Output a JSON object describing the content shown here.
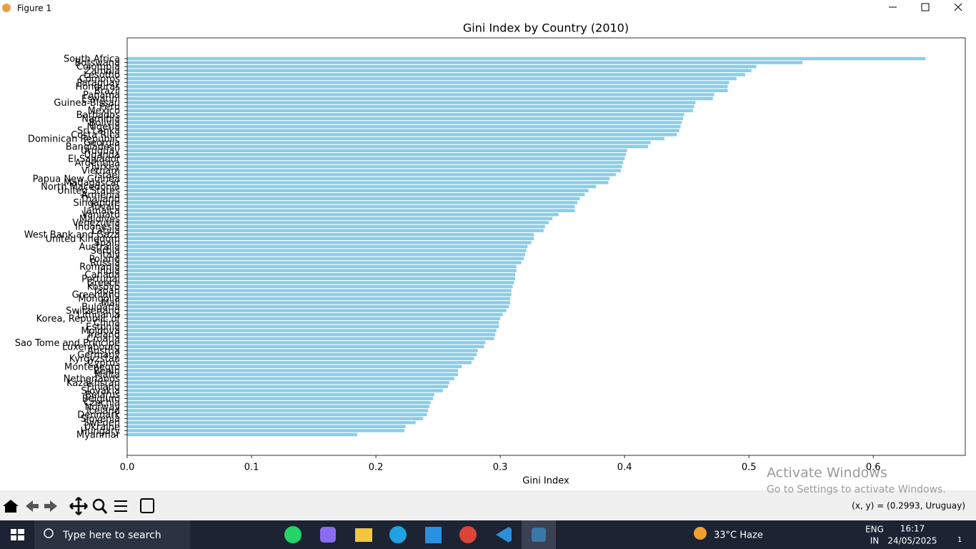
{
  "window": {
    "title": "Figure 1",
    "status": "(x, y) = (0.2993, Uruguay)"
  },
  "watermark": {
    "title": "Activate Windows",
    "subtitle": "Go to Settings to activate Windows."
  },
  "taskbar": {
    "search": "Type here to search",
    "weather": "33°C  Haze",
    "lang": "ENG",
    "region": "IN",
    "time": "16:17",
    "date": "24/05/2025",
    "notifications": "1"
  },
  "chart_data": {
    "type": "barh",
    "title": "Gini Index by Country (2010)",
    "x_label": "Gini Index",
    "color": "#87ceeb",
    "categories": [
      "South Africa",
      "Botswana",
      "Colombia",
      "Zambia",
      "Lesotho",
      "Comoros",
      "Paraguay",
      "Honduras",
      "Brazil",
      "Panama",
      "Eswatini",
      "Guinea-Bissau",
      "Peru",
      "Mexico",
      "Barbados",
      "Namibia",
      "Bolivia",
      "Nigeria",
      "Sri Lanka",
      "Costa Rica",
      "Dominican Republic",
      "Georgia",
      "Bangladesh",
      "Uruguay",
      "Uganda",
      "El Salvador",
      "Argentina",
      "Turkey",
      "Vietnam",
      "Israel",
      "Papua New Guinea",
      "Madagascar",
      "North Macedonia",
      "United States",
      "Armenia",
      "Thailand",
      "Singapore",
      "Tuvalu",
      "Jamaica",
      "Vanuatu",
      "Maldives",
      "Venezuela",
      "Indonesia",
      "Latvia",
      "West Bank and Gaza",
      "United Kingdom",
      "Spain",
      "Australia",
      "Serbia",
      "Italy",
      "Poland",
      "Russia",
      "Romania",
      "India",
      "Canada",
      "Portugal",
      "Greece",
      "Kosovo",
      "Japan",
      "Greenland",
      "Mongolia",
      "Mali",
      "Bulgaria",
      "Switzerland",
      "Lithuania",
      "Korea, Republic of",
      "China",
      "Estonia",
      "Moldova",
      "Ireland",
      "Croatia",
      "Sao Tome and Principe",
      "Luxembourg",
      "Austria",
      "Germany",
      "Kyrgyzstan",
      "Cyprus",
      "Montenegro",
      "Benin",
      "Malta",
      "Netherlands",
      "Kazakhstan",
      "Finland",
      "Slovakia",
      "Belarus",
      "Belgium",
      "Czechia",
      "Norway",
      "Iceland",
      "Denmark",
      "Slovenia",
      "Sweden",
      "Ukraine",
      "Hungary",
      "Myanmar"
    ],
    "values": [
      0.642,
      0.543,
      0.506,
      0.502,
      0.497,
      0.49,
      0.484,
      0.483,
      0.483,
      0.472,
      0.471,
      0.457,
      0.456,
      0.455,
      0.448,
      0.447,
      0.446,
      0.445,
      0.444,
      0.442,
      0.432,
      0.421,
      0.419,
      0.402,
      0.401,
      0.4,
      0.399,
      0.398,
      0.397,
      0.393,
      0.388,
      0.387,
      0.377,
      0.371,
      0.368,
      0.364,
      0.362,
      0.36,
      0.36,
      0.347,
      0.342,
      0.339,
      0.336,
      0.335,
      0.327,
      0.327,
      0.325,
      0.322,
      0.321,
      0.32,
      0.319,
      0.317,
      0.313,
      0.313,
      0.312,
      0.312,
      0.311,
      0.31,
      0.309,
      0.309,
      0.308,
      0.308,
      0.307,
      0.305,
      0.302,
      0.3,
      0.299,
      0.299,
      0.297,
      0.296,
      0.295,
      0.288,
      0.287,
      0.282,
      0.281,
      0.279,
      0.277,
      0.269,
      0.266,
      0.266,
      0.263,
      0.259,
      0.258,
      0.254,
      0.247,
      0.246,
      0.244,
      0.243,
      0.242,
      0.241,
      0.238,
      0.232,
      0.224,
      0.223,
      0.185
    ],
    "xlim": [
      0,
      0.674
    ],
    "xticks": [
      {
        "value": 0,
        "label": "0.0"
      },
      0.1,
      0.2,
      0.3,
      0.4,
      0.5,
      0.6
    ]
  }
}
